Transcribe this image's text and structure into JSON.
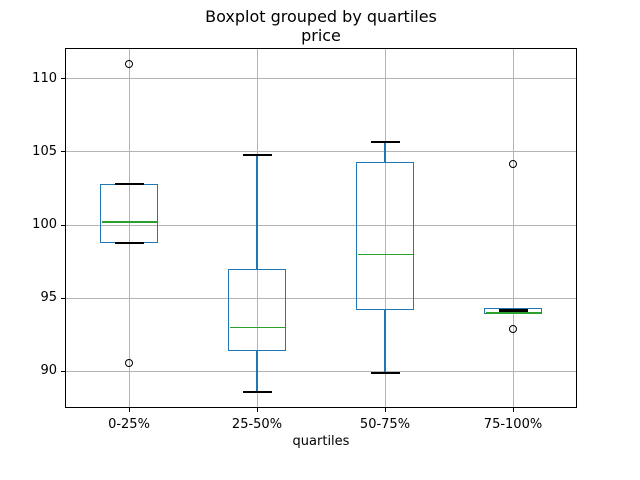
{
  "chart_data": {
    "type": "boxplot",
    "title": "Boxplot grouped by quartiles",
    "subtitle": "price",
    "xlabel": "quartiles",
    "ylabel": "",
    "categories": [
      "0-25%",
      "25-50%",
      "50-75%",
      "75-100%"
    ],
    "yticks": [
      90,
      95,
      100,
      105,
      110
    ],
    "ylim": [
      87.5,
      112.1
    ],
    "grid": true,
    "legend": "none",
    "series": [
      {
        "category": "0-25%",
        "whisker_low": 98.8,
        "q1": 98.8,
        "median": 100.2,
        "q3": 102.8,
        "whisker_high": 102.8,
        "outliers": [
          111.0,
          90.6
        ]
      },
      {
        "category": "25-50%",
        "whisker_low": 88.6,
        "q1": 91.4,
        "median": 93.0,
        "q3": 97.0,
        "whisker_high": 104.8,
        "outliers": []
      },
      {
        "category": "50-75%",
        "whisker_low": 89.9,
        "q1": 94.2,
        "median": 98.0,
        "q3": 104.3,
        "whisker_high": 105.7,
        "outliers": []
      },
      {
        "category": "75-100%",
        "whisker_low": 94.1,
        "q1": 93.9,
        "median": 94.0,
        "q3": 94.3,
        "whisker_high": 94.2,
        "outliers": [
          104.2,
          92.9
        ]
      }
    ],
    "colors": {
      "box": "#1f77b4",
      "whisker": "#1f77b4",
      "median": "#2ca02c",
      "cap": "#000000",
      "outlier_edge": "#000000",
      "grid": "#b4b4b4",
      "spine": "#000000",
      "background": "#ffffff"
    }
  }
}
